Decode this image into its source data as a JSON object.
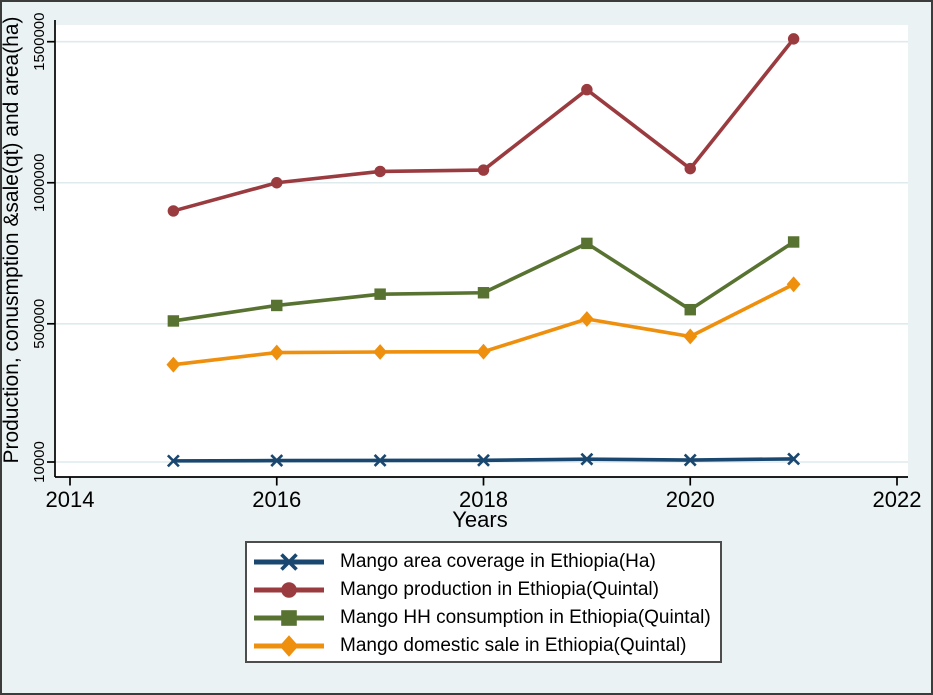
{
  "figure": {
    "background_color": "#eaf2f3",
    "plot_background_color": "#ffffff",
    "gridline_color": "#dfeaec",
    "border_color": "#3c3c3c",
    "legend_border_color": "#4d4d4d"
  },
  "chart_data": {
    "type": "line",
    "title": "",
    "xlabel": "Years",
    "ylabel": "Production, conusmption &sale(qt) and area(ha)",
    "x": [
      2015,
      2016,
      2017,
      2018,
      2019,
      2020,
      2021
    ],
    "x_ticks": [
      2014,
      2016,
      2018,
      2020,
      2022
    ],
    "xlim": [
      2013.85,
      2022.1
    ],
    "y_ticks": [
      10000,
      500000,
      1000000,
      1500000
    ],
    "ylim": [
      -45000,
      1565000
    ],
    "grid": true,
    "legend_position": "bottom-center",
    "series": [
      {
        "name": "area-coverage",
        "label": "Mango area coverage in Ethiopia(Ha)",
        "color": "#1a476f",
        "marker": "x",
        "values": [
          14000,
          15000,
          15500,
          16000,
          20000,
          17000,
          21000
        ]
      },
      {
        "name": "production",
        "label": "Mango production in Ethiopia(Quintal)",
        "color": "#9a3b3f",
        "marker": "circle",
        "values": [
          900000,
          1000000,
          1040000,
          1045000,
          1330000,
          1050000,
          1510000
        ]
      },
      {
        "name": "hh-consumption",
        "label": "Mango HH consumption in Ethiopia(Quintal)",
        "color": "#587331",
        "marker": "square",
        "values": [
          510000,
          565000,
          605000,
          610000,
          785000,
          550000,
          790000
        ]
      },
      {
        "name": "domestic-sale",
        "label": "Mango domestic sale in Ethiopia(Quintal)",
        "color": "#ee8f0e",
        "marker": "diamond",
        "values": [
          355000,
          398000,
          400000,
          401000,
          517000,
          455000,
          640000
        ]
      }
    ]
  }
}
